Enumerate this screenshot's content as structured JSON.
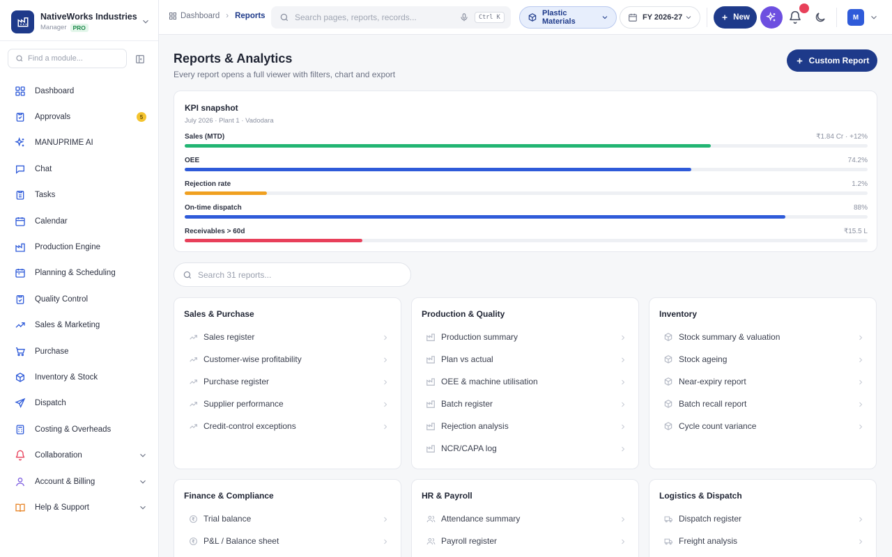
{
  "org": {
    "name": "NativeWorks Industries",
    "role": "Manager",
    "plan": "PRO"
  },
  "sidebar": {
    "find_placeholder": "Find a module...",
    "items": [
      {
        "label": "Dashboard",
        "icon": "grid-icon",
        "color": "#2f5bd9"
      },
      {
        "label": "Approvals",
        "icon": "clipboard-check-icon",
        "color": "#2f5bd9",
        "badge": "5"
      },
      {
        "label": "MANUPRIME AI",
        "icon": "sparkles-icon",
        "color": "#2f5bd9"
      },
      {
        "label": "Chat",
        "icon": "chat-icon",
        "color": "#2f5bd9"
      },
      {
        "label": "Tasks",
        "icon": "checklist-icon",
        "color": "#2f5bd9"
      },
      {
        "label": "Calendar",
        "icon": "calendar-icon",
        "color": "#2f5bd9"
      },
      {
        "label": "Production Engine",
        "icon": "factory-icon",
        "color": "#2f5bd9"
      },
      {
        "label": "Planning & Scheduling",
        "icon": "schedule-icon",
        "color": "#2f5bd9"
      },
      {
        "label": "Quality Control",
        "icon": "quality-clipboard-icon",
        "color": "#2f5bd9"
      },
      {
        "label": "Sales & Marketing",
        "icon": "trend-up-icon",
        "color": "#2f5bd9"
      },
      {
        "label": "Purchase",
        "icon": "cart-icon",
        "color": "#2f5bd9"
      },
      {
        "label": "Inventory & Stock",
        "icon": "box-icon",
        "color": "#2f5bd9"
      },
      {
        "label": "Dispatch",
        "icon": "send-icon",
        "color": "#2f5bd9"
      },
      {
        "label": "Costing & Overheads",
        "icon": "calculator-icon",
        "color": "#2f5bd9"
      },
      {
        "label": "Collaboration",
        "icon": "bell-icon",
        "color": "#e8405a",
        "expandable": true
      },
      {
        "label": "Account & Billing",
        "icon": "user-icon",
        "color": "#7c5ce0",
        "expandable": true
      },
      {
        "label": "Help & Support",
        "icon": "book-icon",
        "color": "#e8862a",
        "expandable": true
      }
    ]
  },
  "topbar": {
    "crumb_home": "Dashboard",
    "crumb_current": "Reports",
    "search_placeholder": "Search pages, reports, records...",
    "shortcut": "Ctrl K",
    "material": "Plastic Materials",
    "fiscal_year": "FY 2026-27",
    "new_label": "New",
    "avatar": "M"
  },
  "page": {
    "title": "Reports & Analytics",
    "subtitle": "Every report opens a full viewer with filters, chart and export",
    "custom_report_label": "Custom Report"
  },
  "kpi": {
    "title": "KPI snapshot",
    "subtitle": "July 2026 · Plant 1 · Vadodara",
    "rows": [
      {
        "label": "Sales (MTD)",
        "value": "₹1.84 Cr · +12%",
        "progress": 0.77,
        "color": "#22b573"
      },
      {
        "label": "OEE",
        "value": "74.2%",
        "progress": 0.742,
        "color": "#2f5bd9"
      },
      {
        "label": "Rejection rate",
        "value": "1.2%",
        "progress": 0.12,
        "color": "#f0a020"
      },
      {
        "label": "On-time dispatch",
        "value": "88%",
        "progress": 0.88,
        "color": "#2f5bd9"
      },
      {
        "label": "Receivables > 60d",
        "value": "₹15.5 L",
        "progress": 0.26,
        "color": "#e8405a"
      }
    ]
  },
  "reports_search_placeholder": "Search 31 reports...",
  "report_groups": [
    {
      "title": "Sales & Purchase",
      "icon": "trend-icon",
      "items": [
        "Sales register",
        "Customer-wise profitability",
        "Purchase register",
        "Supplier performance",
        "Credit-control exceptions"
      ]
    },
    {
      "title": "Production & Quality",
      "icon": "factory-icon",
      "items": [
        "Production summary",
        "Plan vs actual",
        "OEE & machine utilisation",
        "Batch register",
        "Rejection analysis",
        "NCR/CAPA log"
      ]
    },
    {
      "title": "Inventory",
      "icon": "box-icon",
      "items": [
        "Stock summary & valuation",
        "Stock ageing",
        "Near-expiry report",
        "Batch recall report",
        "Cycle count variance"
      ]
    },
    {
      "title": "Finance & Compliance",
      "icon": "rupee-icon",
      "items": [
        "Trial balance",
        "P&L / Balance sheet"
      ]
    },
    {
      "title": "HR & Payroll",
      "icon": "people-icon",
      "items": [
        "Attendance summary",
        "Payroll register"
      ]
    },
    {
      "title": "Logistics & Dispatch",
      "icon": "truck-icon",
      "items": [
        "Dispatch register",
        "Freight analysis"
      ]
    }
  ]
}
